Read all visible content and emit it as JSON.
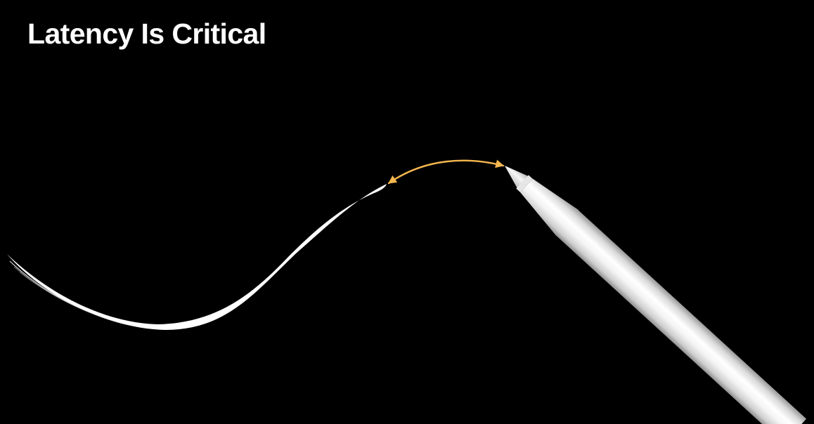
{
  "slide": {
    "title": "Latency Is Critical"
  },
  "colors": {
    "background": "#000000",
    "title_text": "#ffffff",
    "ink_stroke": "#ffffff",
    "latency_arrow": "#f5b74f",
    "pencil_body": "#f2f2f2"
  },
  "illustration": {
    "elements": [
      "ink-stroke",
      "latency-arrow",
      "apple-pencil"
    ]
  }
}
